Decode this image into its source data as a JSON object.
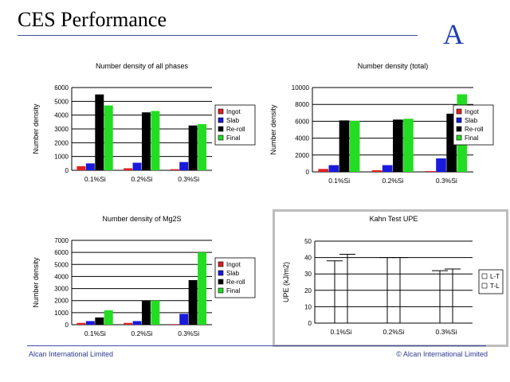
{
  "slide": {
    "title": "CES Performance",
    "logo_letter": "A"
  },
  "footer": {
    "left": "Alcan International Limited",
    "right": "© Alcan International Limited"
  },
  "colors": {
    "Ingot": "#e02020",
    "Slab": "#1a1adc",
    "Re-roll": "#000000",
    "Final": "#22dd22",
    "rule": "#3c4fa0"
  },
  "chart_data": [
    {
      "type": "bar",
      "title": "Number density of all phases",
      "ylabel": "Number density",
      "ylim": [
        0,
        6000
      ],
      "yticks": [
        0,
        1000,
        2000,
        3000,
        4000,
        5000,
        6000
      ],
      "grid": true,
      "legend_position": "right",
      "categories": [
        "0.1%Si",
        "0.2%Si",
        "0.3%Si"
      ],
      "series": [
        {
          "name": "Ingot",
          "values": [
            300,
            150,
            80
          ]
        },
        {
          "name": "Slab",
          "values": [
            500,
            550,
            600
          ]
        },
        {
          "name": "Re-roll",
          "values": [
            5500,
            4200,
            3250
          ]
        },
        {
          "name": "Final",
          "values": [
            4700,
            4300,
            3350
          ]
        }
      ]
    },
    {
      "type": "bar",
      "title": "Number density (total)",
      "ylabel": "Number density",
      "ylim": [
        0,
        10000
      ],
      "yticks": [
        0,
        2000,
        4000,
        6000,
        8000,
        10000
      ],
      "grid": true,
      "legend_position": "right",
      "categories": [
        "0.1%Si",
        "0.2%Si",
        "0.3%Si"
      ],
      "series": [
        {
          "name": "Ingot",
          "values": [
            350,
            200,
            100
          ]
        },
        {
          "name": "Slab",
          "values": [
            800,
            800,
            1600
          ]
        },
        {
          "name": "Re-roll",
          "values": [
            6100,
            6200,
            6900
          ]
        },
        {
          "name": "Final",
          "values": [
            6050,
            6300,
            9200
          ]
        }
      ]
    },
    {
      "type": "bar",
      "title": "Number density of Mg2S",
      "ylabel": "Number density",
      "ylim": [
        0,
        7000
      ],
      "yticks": [
        0,
        1000,
        2000,
        3000,
        4000,
        5000,
        6000,
        7000
      ],
      "grid": true,
      "legend_position": "right",
      "categories": [
        "0.1%Si",
        "0.2%Si",
        "0.3%Si"
      ],
      "series": [
        {
          "name": "Ingot",
          "values": [
            150,
            150,
            50
          ]
        },
        {
          "name": "Slab",
          "values": [
            300,
            300,
            900
          ]
        },
        {
          "name": "Re-roll",
          "values": [
            600,
            2000,
            3700
          ]
        },
        {
          "name": "Final",
          "values": [
            1200,
            2000,
            6000
          ]
        }
      ]
    },
    {
      "type": "line",
      "title": "Kahn Test UPE",
      "ylabel": "UPE (kJ/m2)",
      "ylim": [
        0,
        50
      ],
      "yticks": [
        0,
        10,
        20,
        30,
        40,
        50
      ],
      "grid": true,
      "legend_position": "right",
      "categories": [
        "0.1%Si",
        "0.2%Si",
        "0.3%Si"
      ],
      "series": [
        {
          "name": "L-T",
          "values": [
            38,
            40,
            32
          ]
        },
        {
          "name": "T-L",
          "values": [
            42,
            40,
            33
          ]
        }
      ]
    }
  ]
}
